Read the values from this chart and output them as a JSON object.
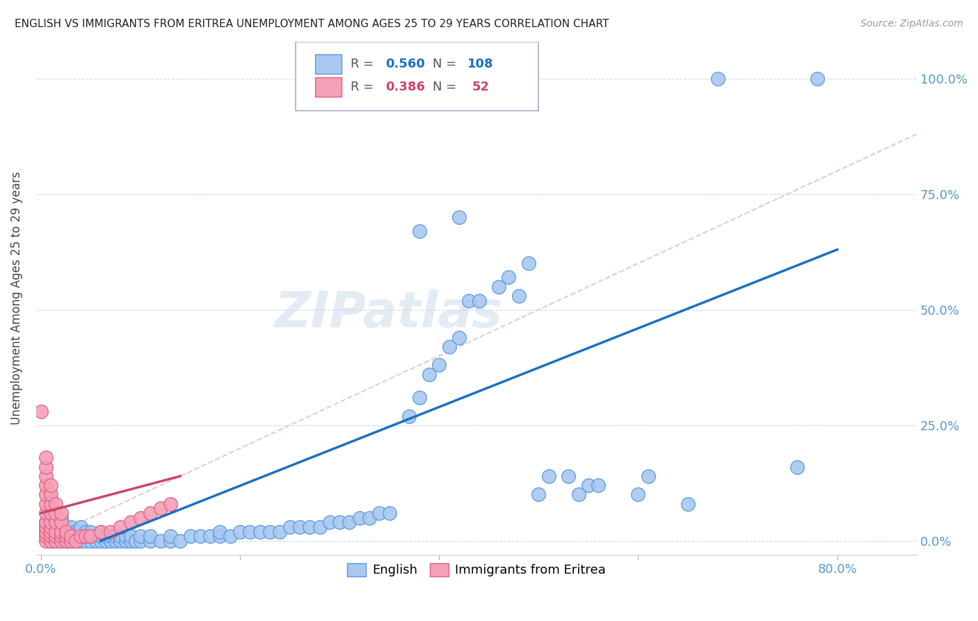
{
  "title": "ENGLISH VS IMMIGRANTS FROM ERITREA UNEMPLOYMENT AMONG AGES 25 TO 29 YEARS CORRELATION CHART",
  "source": "Source: ZipAtlas.com",
  "ylabel_label": "Unemployment Among Ages 25 to 29 years",
  "english_color": "#a8c8f0",
  "eritrea_color": "#f4a0b8",
  "english_edge_color": "#5599dd",
  "eritrea_edge_color": "#e06080",
  "english_line_color": "#1a6fc4",
  "eritrea_line_color": "#cc4466",
  "diagonal_color": "#e8c8cc",
  "R_english": 0.56,
  "N_english": 108,
  "R_eritrea": 0.386,
  "N_eritrea": 52,
  "watermark": "ZIPatlas",
  "english_scatter": [
    [
      0.005,
      0.02
    ],
    [
      0.005,
      0.04
    ],
    [
      0.005,
      0.01
    ],
    [
      0.005,
      0.03
    ],
    [
      0.01,
      0.0
    ],
    [
      0.01,
      0.01
    ],
    [
      0.01,
      0.02
    ],
    [
      0.01,
      0.03
    ],
    [
      0.01,
      0.04
    ],
    [
      0.01,
      0.05
    ],
    [
      0.01,
      0.07
    ],
    [
      0.01,
      0.09
    ],
    [
      0.015,
      0.0
    ],
    [
      0.015,
      0.01
    ],
    [
      0.015,
      0.02
    ],
    [
      0.015,
      0.03
    ],
    [
      0.015,
      0.04
    ],
    [
      0.015,
      0.06
    ],
    [
      0.02,
      0.0
    ],
    [
      0.02,
      0.01
    ],
    [
      0.02,
      0.02
    ],
    [
      0.02,
      0.03
    ],
    [
      0.02,
      0.04
    ],
    [
      0.02,
      0.05
    ],
    [
      0.025,
      0.0
    ],
    [
      0.025,
      0.01
    ],
    [
      0.025,
      0.02
    ],
    [
      0.025,
      0.03
    ],
    [
      0.03,
      0.0
    ],
    [
      0.03,
      0.01
    ],
    [
      0.03,
      0.02
    ],
    [
      0.03,
      0.03
    ],
    [
      0.035,
      0.0
    ],
    [
      0.035,
      0.01
    ],
    [
      0.035,
      0.02
    ],
    [
      0.04,
      0.0
    ],
    [
      0.04,
      0.01
    ],
    [
      0.04,
      0.02
    ],
    [
      0.04,
      0.03
    ],
    [
      0.045,
      0.0
    ],
    [
      0.045,
      0.01
    ],
    [
      0.045,
      0.02
    ],
    [
      0.05,
      0.0
    ],
    [
      0.05,
      0.01
    ],
    [
      0.05,
      0.02
    ],
    [
      0.055,
      0.0
    ],
    [
      0.055,
      0.01
    ],
    [
      0.06,
      0.0
    ],
    [
      0.06,
      0.01
    ],
    [
      0.06,
      0.02
    ],
    [
      0.065,
      0.0
    ],
    [
      0.065,
      0.01
    ],
    [
      0.07,
      0.0
    ],
    [
      0.07,
      0.01
    ],
    [
      0.075,
      0.0
    ],
    [
      0.075,
      0.01
    ],
    [
      0.08,
      0.0
    ],
    [
      0.08,
      0.01
    ],
    [
      0.085,
      0.0
    ],
    [
      0.085,
      0.01
    ],
    [
      0.09,
      0.0
    ],
    [
      0.09,
      0.01
    ],
    [
      0.095,
      0.0
    ],
    [
      0.1,
      0.0
    ],
    [
      0.1,
      0.01
    ],
    [
      0.11,
      0.0
    ],
    [
      0.11,
      0.01
    ],
    [
      0.12,
      0.0
    ],
    [
      0.13,
      0.0
    ],
    [
      0.13,
      0.01
    ],
    [
      0.14,
      0.0
    ],
    [
      0.15,
      0.01
    ],
    [
      0.16,
      0.01
    ],
    [
      0.17,
      0.01
    ],
    [
      0.18,
      0.01
    ],
    [
      0.18,
      0.02
    ],
    [
      0.19,
      0.01
    ],
    [
      0.2,
      0.02
    ],
    [
      0.21,
      0.02
    ],
    [
      0.22,
      0.02
    ],
    [
      0.23,
      0.02
    ],
    [
      0.24,
      0.02
    ],
    [
      0.25,
      0.03
    ],
    [
      0.26,
      0.03
    ],
    [
      0.27,
      0.03
    ],
    [
      0.28,
      0.03
    ],
    [
      0.29,
      0.04
    ],
    [
      0.3,
      0.04
    ],
    [
      0.31,
      0.04
    ],
    [
      0.32,
      0.05
    ],
    [
      0.33,
      0.05
    ],
    [
      0.34,
      0.06
    ],
    [
      0.35,
      0.06
    ],
    [
      0.37,
      0.27
    ],
    [
      0.38,
      0.31
    ],
    [
      0.39,
      0.36
    ],
    [
      0.4,
      0.38
    ],
    [
      0.41,
      0.42
    ],
    [
      0.42,
      0.44
    ],
    [
      0.43,
      0.52
    ],
    [
      0.44,
      0.52
    ],
    [
      0.46,
      0.55
    ],
    [
      0.47,
      0.57
    ],
    [
      0.48,
      0.53
    ],
    [
      0.49,
      0.6
    ],
    [
      0.5,
      0.1
    ],
    [
      0.51,
      0.14
    ],
    [
      0.53,
      0.14
    ],
    [
      0.54,
      0.1
    ],
    [
      0.55,
      0.12
    ],
    [
      0.56,
      0.12
    ],
    [
      0.6,
      0.1
    ],
    [
      0.61,
      0.14
    ],
    [
      0.65,
      0.08
    ],
    [
      0.38,
      0.67
    ],
    [
      0.42,
      0.7
    ],
    [
      0.43,
      1.0
    ],
    [
      0.44,
      1.0
    ],
    [
      0.46,
      1.0
    ],
    [
      0.68,
      1.0
    ],
    [
      0.78,
      1.0
    ],
    [
      0.76,
      0.16
    ]
  ],
  "eritrea_scatter": [
    [
      0.0,
      0.28
    ],
    [
      0.005,
      0.0
    ],
    [
      0.005,
      0.01
    ],
    [
      0.005,
      0.02
    ],
    [
      0.005,
      0.03
    ],
    [
      0.005,
      0.04
    ],
    [
      0.005,
      0.06
    ],
    [
      0.005,
      0.08
    ],
    [
      0.005,
      0.1
    ],
    [
      0.005,
      0.12
    ],
    [
      0.005,
      0.14
    ],
    [
      0.005,
      0.16
    ],
    [
      0.005,
      0.18
    ],
    [
      0.01,
      0.0
    ],
    [
      0.01,
      0.01
    ],
    [
      0.01,
      0.02
    ],
    [
      0.01,
      0.03
    ],
    [
      0.01,
      0.04
    ],
    [
      0.01,
      0.06
    ],
    [
      0.01,
      0.08
    ],
    [
      0.01,
      0.1
    ],
    [
      0.01,
      0.12
    ],
    [
      0.015,
      0.0
    ],
    [
      0.015,
      0.01
    ],
    [
      0.015,
      0.02
    ],
    [
      0.015,
      0.04
    ],
    [
      0.015,
      0.06
    ],
    [
      0.015,
      0.08
    ],
    [
      0.02,
      0.0
    ],
    [
      0.02,
      0.01
    ],
    [
      0.02,
      0.02
    ],
    [
      0.02,
      0.04
    ],
    [
      0.02,
      0.06
    ],
    [
      0.025,
      0.0
    ],
    [
      0.025,
      0.01
    ],
    [
      0.025,
      0.02
    ],
    [
      0.03,
      0.0
    ],
    [
      0.03,
      0.01
    ],
    [
      0.035,
      0.0
    ],
    [
      0.04,
      0.01
    ],
    [
      0.045,
      0.01
    ],
    [
      0.05,
      0.01
    ],
    [
      0.06,
      0.02
    ],
    [
      0.07,
      0.02
    ],
    [
      0.08,
      0.03
    ],
    [
      0.09,
      0.04
    ],
    [
      0.1,
      0.05
    ],
    [
      0.11,
      0.06
    ],
    [
      0.12,
      0.07
    ],
    [
      0.13,
      0.08
    ]
  ],
  "english_line_x": [
    0.06,
    0.8
  ],
  "english_line_y": [
    0.0,
    0.63
  ],
  "eritrea_line_x": [
    0.0,
    0.14
  ],
  "eritrea_line_y": [
    0.06,
    0.14
  ],
  "xlim": [
    -0.005,
    0.88
  ],
  "ylim": [
    -0.03,
    1.08
  ]
}
